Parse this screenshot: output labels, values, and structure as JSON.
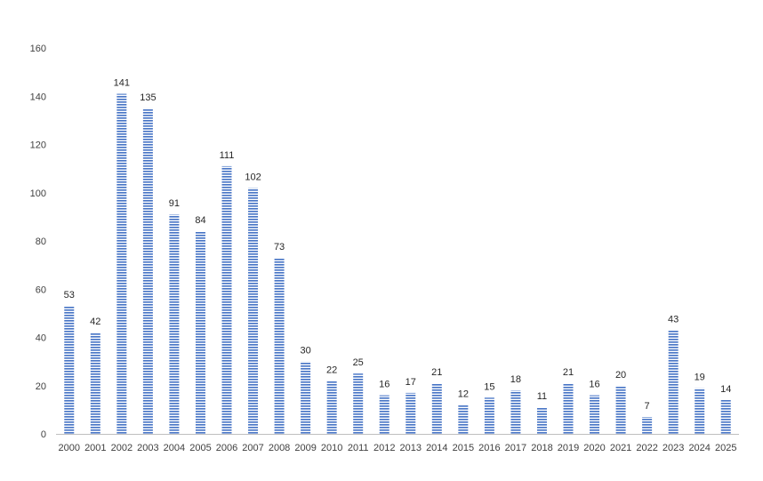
{
  "chart_data": {
    "type": "bar",
    "title": "",
    "xlabel": "",
    "ylabel": "",
    "ylim": [
      0,
      160
    ],
    "yticks": [
      0,
      20,
      40,
      60,
      80,
      100,
      120,
      140,
      160
    ],
    "grid": false,
    "legend": "none",
    "bar_fill": "horizontal-stripes",
    "colors": {
      "bar": "#4472c4",
      "axis": "#bfbfbf",
      "text": "#404040"
    },
    "categories": [
      "2000",
      "2001",
      "2002",
      "2003",
      "2004",
      "2005",
      "2006",
      "2007",
      "2008",
      "2009",
      "2010",
      "2011",
      "2012",
      "2013",
      "2014",
      "2015",
      "2016",
      "2017",
      "2018",
      "2019",
      "2020",
      "2021",
      "2022",
      "2023",
      "2024",
      "2025"
    ],
    "values": [
      53,
      42,
      141,
      135,
      91,
      84,
      111,
      102,
      73,
      30,
      22,
      25,
      16,
      17,
      21,
      12,
      15,
      18,
      11,
      21,
      16,
      20,
      7,
      43,
      19,
      14
    ]
  }
}
